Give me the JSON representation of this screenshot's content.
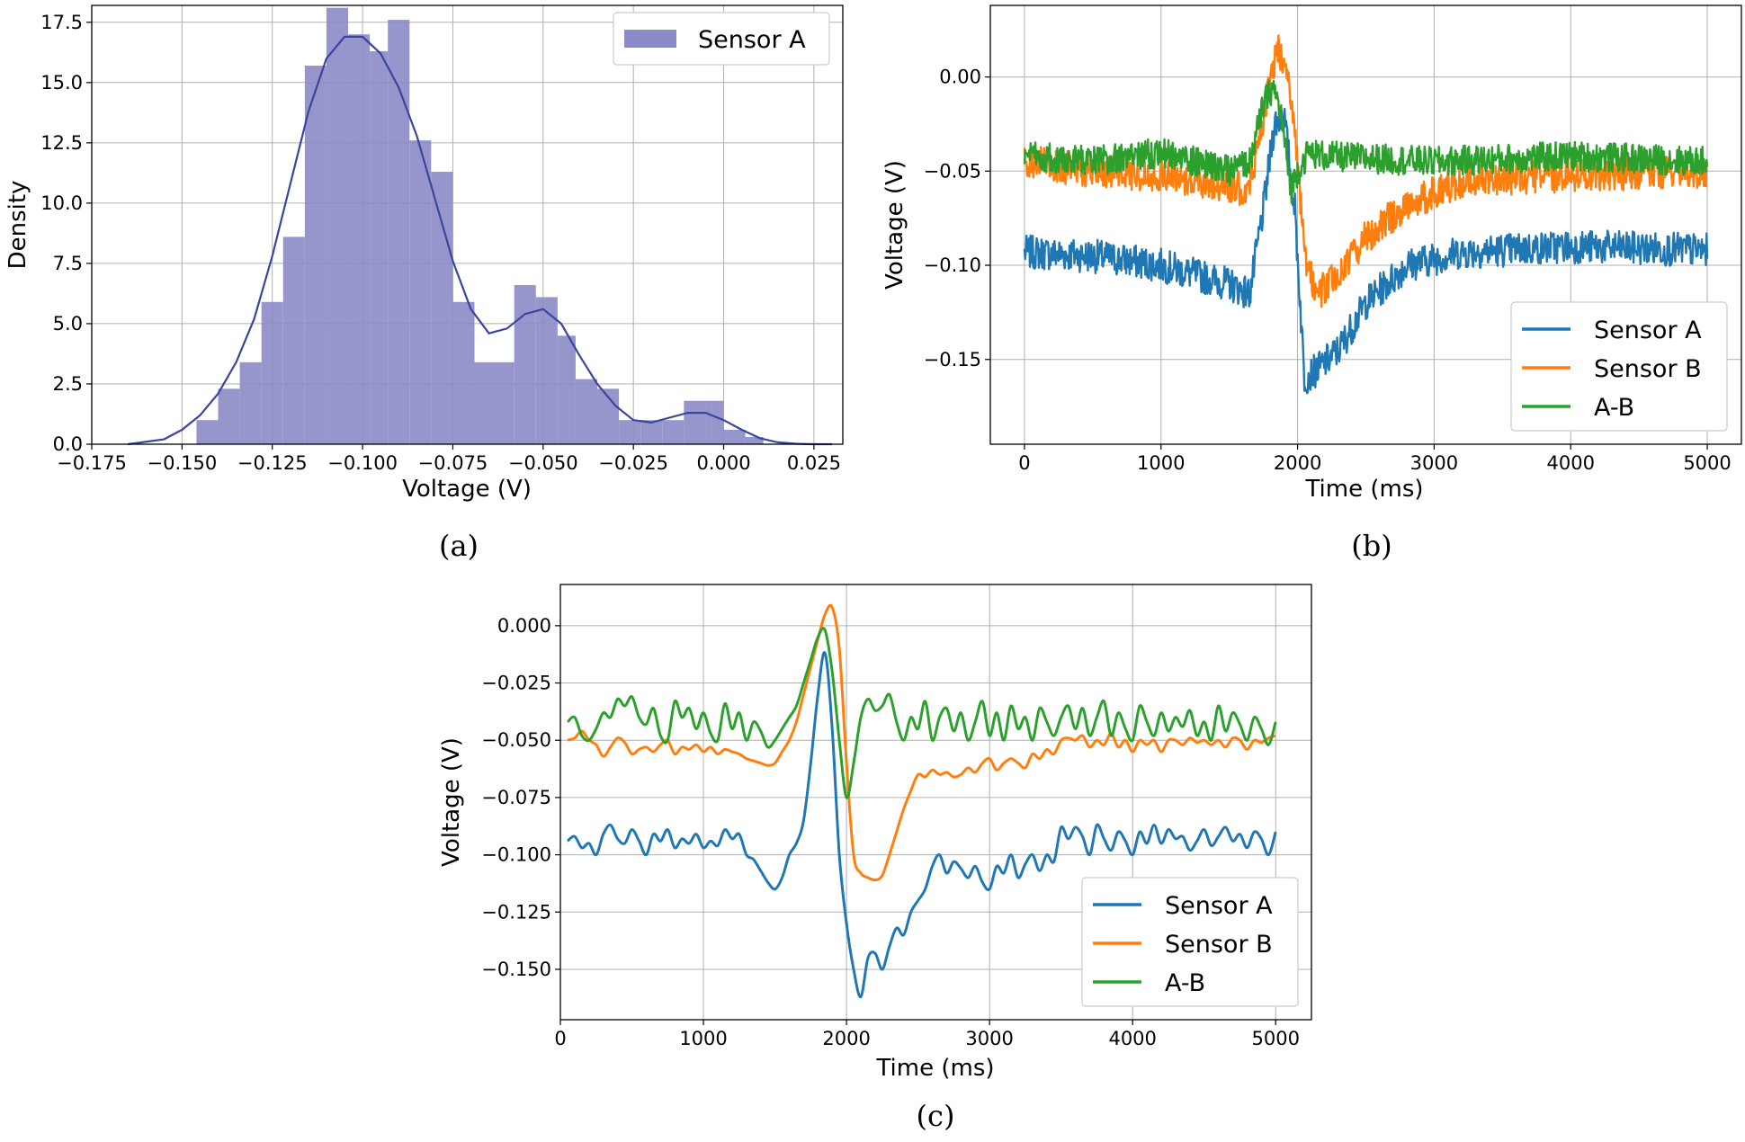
{
  "captions": {
    "a": "(a)",
    "b": "(b)",
    "c": "(c)"
  },
  "colors": {
    "hist": "#8b8bc8",
    "kde": "#3a45a0",
    "sensor_a": "#1f77b4",
    "sensor_b": "#ff7f0e",
    "a_b": "#2ca02c"
  },
  "chart_data": [
    {
      "id": "a",
      "type": "bar",
      "xlabel": "Voltage (V)",
      "ylabel": "Density",
      "xlim": [
        -0.175,
        0.033
      ],
      "ylim": [
        0,
        18.2
      ],
      "xticks": [
        "−0.175",
        "−0.150",
        "−0.125",
        "−0.100",
        "−0.075",
        "−0.050",
        "−0.025",
        "0.000",
        "0.025"
      ],
      "yticks": [
        "0.0",
        "2.5",
        "5.0",
        "7.5",
        "10.0",
        "12.5",
        "15.0",
        "17.5"
      ],
      "grid": true,
      "legend": [
        "Sensor A"
      ],
      "legend_position": "top-right",
      "bins": [
        {
          "x0": -0.146,
          "x1": -0.14,
          "density": 1.0
        },
        {
          "x0": -0.14,
          "x1": -0.134,
          "density": 2.3
        },
        {
          "x0": -0.134,
          "x1": -0.128,
          "density": 3.4
        },
        {
          "x0": -0.128,
          "x1": -0.122,
          "density": 5.9
        },
        {
          "x0": -0.122,
          "x1": -0.116,
          "density": 8.6
        },
        {
          "x0": -0.116,
          "x1": -0.11,
          "density": 15.7
        },
        {
          "x0": -0.11,
          "x1": -0.104,
          "density": 18.1
        },
        {
          "x0": -0.104,
          "x1": -0.098,
          "density": 17.0
        },
        {
          "x0": -0.098,
          "x1": -0.093,
          "density": 16.3
        },
        {
          "x0": -0.093,
          "x1": -0.087,
          "density": 17.6
        },
        {
          "x0": -0.087,
          "x1": -0.081,
          "density": 12.6
        },
        {
          "x0": -0.081,
          "x1": -0.075,
          "density": 11.3
        },
        {
          "x0": -0.075,
          "x1": -0.069,
          "density": 5.9
        },
        {
          "x0": -0.069,
          "x1": -0.058,
          "density": 3.4
        },
        {
          "x0": -0.058,
          "x1": -0.052,
          "density": 6.6
        },
        {
          "x0": -0.052,
          "x1": -0.046,
          "density": 6.1
        },
        {
          "x0": -0.046,
          "x1": -0.041,
          "density": 4.5
        },
        {
          "x0": -0.041,
          "x1": -0.035,
          "density": 2.7
        },
        {
          "x0": -0.035,
          "x1": -0.029,
          "density": 2.3
        },
        {
          "x0": -0.029,
          "x1": -0.023,
          "density": 1.0
        },
        {
          "x0": -0.023,
          "x1": -0.017,
          "density": 1.0
        },
        {
          "x0": -0.017,
          "x1": -0.011,
          "density": 1.0
        },
        {
          "x0": -0.011,
          "x1": -0.005,
          "density": 1.8
        },
        {
          "x0": -0.005,
          "x1": 0.0,
          "density": 1.8
        },
        {
          "x0": 0.0,
          "x1": 0.006,
          "density": 0.6
        },
        {
          "x0": 0.006,
          "x1": 0.011,
          "density": 0.3
        }
      ],
      "kde": {
        "x": [
          -0.165,
          -0.155,
          -0.15,
          -0.145,
          -0.14,
          -0.135,
          -0.13,
          -0.125,
          -0.12,
          -0.115,
          -0.11,
          -0.105,
          -0.1,
          -0.095,
          -0.09,
          -0.085,
          -0.08,
          -0.075,
          -0.07,
          -0.065,
          -0.06,
          -0.055,
          -0.05,
          -0.045,
          -0.04,
          -0.035,
          -0.03,
          -0.025,
          -0.02,
          -0.015,
          -0.01,
          -0.005,
          0.0,
          0.005,
          0.01,
          0.015,
          0.02,
          0.025,
          0.03
        ],
        "y": [
          0.0,
          0.2,
          0.6,
          1.2,
          2.1,
          3.4,
          5.2,
          7.8,
          10.8,
          13.8,
          16.0,
          16.9,
          16.9,
          16.2,
          14.8,
          12.8,
          10.2,
          7.6,
          5.6,
          4.6,
          4.8,
          5.4,
          5.6,
          5.0,
          3.7,
          2.5,
          1.6,
          1.0,
          0.9,
          1.1,
          1.3,
          1.3,
          1.0,
          0.6,
          0.25,
          0.08,
          0.02,
          0.0,
          0.0
        ]
      }
    },
    {
      "id": "b",
      "type": "line",
      "xlabel": "Time (ms)",
      "ylabel": "Voltage (V)",
      "xlim": [
        -250,
        5250
      ],
      "ylim": [
        -0.195,
        0.038
      ],
      "xticks": [
        0,
        1000,
        2000,
        3000,
        4000,
        5000
      ],
      "yticks": [
        "0.00",
        "−0.05",
        "−0.10",
        "−0.15"
      ],
      "ytick_values": [
        0.0,
        -0.05,
        -0.1,
        -0.15
      ],
      "grid": true,
      "legend_position": "bottom-right",
      "series": [
        {
          "name": "Sensor A",
          "color_key": "sensor_a",
          "noise": 0.009,
          "knots_x": [
            0,
            500,
            1000,
            1500,
            1650,
            1750,
            1830,
            1900,
            1980,
            2050,
            2150,
            2300,
            2500,
            2800,
            3200,
            4000,
            5000
          ],
          "knots_y": [
            -0.093,
            -0.095,
            -0.1,
            -0.11,
            -0.115,
            -0.07,
            -0.025,
            -0.02,
            -0.07,
            -0.16,
            -0.155,
            -0.145,
            -0.12,
            -0.1,
            -0.093,
            -0.09,
            -0.092
          ]
        },
        {
          "name": "Sensor B",
          "color_key": "sensor_b",
          "noise": 0.009,
          "knots_x": [
            0,
            500,
            1000,
            1500,
            1650,
            1750,
            1850,
            1920,
            1990,
            2060,
            2150,
            2300,
            2500,
            2800,
            3200,
            4000,
            5000
          ],
          "knots_y": [
            -0.045,
            -0.05,
            -0.052,
            -0.058,
            -0.06,
            -0.02,
            0.015,
            0.008,
            -0.04,
            -0.1,
            -0.115,
            -0.105,
            -0.085,
            -0.068,
            -0.055,
            -0.052,
            -0.05
          ]
        },
        {
          "name": "A-B",
          "color_key": "a_b",
          "noise": 0.008,
          "knots_x": [
            0,
            500,
            1000,
            1500,
            1650,
            1750,
            1820,
            1880,
            1950,
            2000,
            2080,
            2200,
            3000,
            4000,
            5000
          ],
          "knots_y": [
            -0.042,
            -0.045,
            -0.04,
            -0.05,
            -0.045,
            -0.015,
            -0.005,
            -0.02,
            -0.06,
            -0.05,
            -0.04,
            -0.042,
            -0.045,
            -0.042,
            -0.045
          ]
        }
      ]
    },
    {
      "id": "c",
      "type": "line",
      "xlabel": "Time (ms)",
      "ylabel": "Voltage (V)",
      "xlim": [
        0,
        5250
      ],
      "ylim": [
        -0.172,
        0.018
      ],
      "xticks": [
        0,
        1000,
        2000,
        3000,
        4000,
        5000
      ],
      "yticks": [
        "0.000",
        "−0.025",
        "−0.050",
        "−0.075",
        "−0.100",
        "−0.125",
        "−0.150"
      ],
      "ytick_values": [
        0.0,
        -0.025,
        -0.05,
        -0.075,
        -0.1,
        -0.125,
        -0.15
      ],
      "grid": true,
      "legend_position": "bottom-right",
      "series": [
        {
          "name": "Sensor A",
          "color_key": "sensor_a",
          "x": [
            50,
            100,
            150,
            200,
            250,
            300,
            350,
            400,
            450,
            500,
            550,
            600,
            650,
            700,
            750,
            800,
            850,
            900,
            950,
            1000,
            1050,
            1100,
            1150,
            1200,
            1250,
            1300,
            1350,
            1400,
            1450,
            1500,
            1550,
            1600,
            1650,
            1700,
            1750,
            1800,
            1850,
            1900,
            1950,
            2000,
            2050,
            2100,
            2150,
            2200,
            2250,
            2300,
            2350,
            2400,
            2450,
            2500,
            2550,
            2600,
            2650,
            2700,
            2750,
            2800,
            2850,
            2900,
            2950,
            3000,
            3050,
            3100,
            3150,
            3200,
            3250,
            3300,
            3350,
            3400,
            3450,
            3500,
            3550,
            3600,
            3650,
            3700,
            3750,
            3800,
            3850,
            3900,
            3950,
            4000,
            4050,
            4100,
            4150,
            4200,
            4250,
            4300,
            4350,
            4400,
            4450,
            4500,
            4550,
            4600,
            4650,
            4700,
            4750,
            4800,
            4850,
            4900,
            4950,
            5000
          ],
          "y": [
            -0.094,
            -0.092,
            -0.097,
            -0.095,
            -0.1,
            -0.091,
            -0.087,
            -0.093,
            -0.095,
            -0.089,
            -0.094,
            -0.1,
            -0.091,
            -0.094,
            -0.089,
            -0.097,
            -0.093,
            -0.095,
            -0.091,
            -0.097,
            -0.094,
            -0.096,
            -0.089,
            -0.093,
            -0.091,
            -0.1,
            -0.102,
            -0.107,
            -0.112,
            -0.115,
            -0.11,
            -0.1,
            -0.095,
            -0.085,
            -0.06,
            -0.03,
            -0.012,
            -0.045,
            -0.1,
            -0.13,
            -0.15,
            -0.162,
            -0.145,
            -0.143,
            -0.15,
            -0.14,
            -0.132,
            -0.135,
            -0.125,
            -0.12,
            -0.115,
            -0.105,
            -0.1,
            -0.108,
            -0.103,
            -0.106,
            -0.11,
            -0.105,
            -0.112,
            -0.115,
            -0.105,
            -0.108,
            -0.1,
            -0.11,
            -0.104,
            -0.1,
            -0.107,
            -0.1,
            -0.103,
            -0.088,
            -0.093,
            -0.088,
            -0.092,
            -0.1,
            -0.087,
            -0.093,
            -0.098,
            -0.09,
            -0.094,
            -0.1,
            -0.09,
            -0.095,
            -0.087,
            -0.095,
            -0.089,
            -0.093,
            -0.092,
            -0.098,
            -0.094,
            -0.089,
            -0.096,
            -0.092,
            -0.088,
            -0.094,
            -0.091,
            -0.097,
            -0.09,
            -0.093,
            -0.1,
            -0.09
          ]
        },
        {
          "name": "Sensor B",
          "color_key": "sensor_b",
          "x": [
            50,
            100,
            150,
            200,
            250,
            300,
            350,
            400,
            450,
            500,
            550,
            600,
            650,
            700,
            750,
            800,
            850,
            900,
            950,
            1000,
            1050,
            1100,
            1150,
            1200,
            1250,
            1300,
            1350,
            1400,
            1450,
            1500,
            1550,
            1600,
            1650,
            1700,
            1750,
            1800,
            1850,
            1900,
            1950,
            2000,
            2050,
            2100,
            2150,
            2200,
            2250,
            2300,
            2350,
            2400,
            2450,
            2500,
            2550,
            2600,
            2650,
            2700,
            2750,
            2800,
            2850,
            2900,
            2950,
            3000,
            3050,
            3100,
            3150,
            3200,
            3250,
            3300,
            3350,
            3400,
            3450,
            3500,
            3550,
            3600,
            3650,
            3700,
            3750,
            3800,
            3850,
            3900,
            3950,
            4000,
            4050,
            4100,
            4150,
            4200,
            4250,
            4300,
            4350,
            4400,
            4450,
            4500,
            4550,
            4600,
            4650,
            4700,
            4750,
            4800,
            4850,
            4900,
            4950,
            5000
          ],
          "y": [
            -0.05,
            -0.049,
            -0.046,
            -0.05,
            -0.052,
            -0.057,
            -0.053,
            -0.049,
            -0.051,
            -0.056,
            -0.054,
            -0.053,
            -0.055,
            -0.052,
            -0.05,
            -0.056,
            -0.053,
            -0.054,
            -0.052,
            -0.055,
            -0.053,
            -0.056,
            -0.054,
            -0.055,
            -0.056,
            -0.058,
            -0.059,
            -0.06,
            -0.061,
            -0.06,
            -0.055,
            -0.05,
            -0.042,
            -0.03,
            -0.018,
            -0.006,
            0.005,
            0.008,
            -0.01,
            -0.06,
            -0.1,
            -0.108,
            -0.11,
            -0.111,
            -0.109,
            -0.1,
            -0.09,
            -0.08,
            -0.072,
            -0.065,
            -0.066,
            -0.063,
            -0.065,
            -0.064,
            -0.066,
            -0.065,
            -0.062,
            -0.064,
            -0.06,
            -0.058,
            -0.063,
            -0.06,
            -0.058,
            -0.06,
            -0.062,
            -0.056,
            -0.058,
            -0.054,
            -0.056,
            -0.05,
            -0.049,
            -0.05,
            -0.048,
            -0.053,
            -0.05,
            -0.052,
            -0.047,
            -0.053,
            -0.05,
            -0.055,
            -0.05,
            -0.052,
            -0.05,
            -0.055,
            -0.05,
            -0.05,
            -0.052,
            -0.049,
            -0.051,
            -0.05,
            -0.052,
            -0.05,
            -0.053,
            -0.049,
            -0.05,
            -0.054,
            -0.05,
            -0.051,
            -0.049,
            -0.048
          ]
        },
        {
          "name": "A-B",
          "color_key": "a_b",
          "x": [
            50,
            100,
            150,
            200,
            250,
            300,
            350,
            400,
            450,
            500,
            550,
            600,
            650,
            700,
            750,
            800,
            850,
            900,
            950,
            1000,
            1050,
            1100,
            1150,
            1200,
            1250,
            1300,
            1350,
            1400,
            1450,
            1500,
            1550,
            1600,
            1650,
            1700,
            1750,
            1800,
            1850,
            1900,
            1950,
            2000,
            2050,
            2100,
            2150,
            2200,
            2250,
            2300,
            2350,
            2400,
            2450,
            2500,
            2550,
            2600,
            2650,
            2700,
            2750,
            2800,
            2850,
            2900,
            2950,
            3000,
            3050,
            3100,
            3150,
            3200,
            3250,
            3300,
            3350,
            3400,
            3450,
            3500,
            3550,
            3600,
            3650,
            3700,
            3750,
            3800,
            3850,
            3900,
            3950,
            4000,
            4050,
            4100,
            4150,
            4200,
            4250,
            4300,
            4350,
            4400,
            4450,
            4500,
            4550,
            4600,
            4650,
            4700,
            4750,
            4800,
            4850,
            4900,
            4950,
            5000
          ],
          "y": [
            -0.042,
            -0.04,
            -0.048,
            -0.05,
            -0.045,
            -0.038,
            -0.04,
            -0.032,
            -0.035,
            -0.031,
            -0.04,
            -0.043,
            -0.036,
            -0.048,
            -0.05,
            -0.033,
            -0.04,
            -0.036,
            -0.045,
            -0.038,
            -0.047,
            -0.05,
            -0.034,
            -0.045,
            -0.038,
            -0.05,
            -0.042,
            -0.046,
            -0.053,
            -0.05,
            -0.045,
            -0.04,
            -0.035,
            -0.025,
            -0.015,
            -0.005,
            -0.002,
            -0.02,
            -0.05,
            -0.075,
            -0.06,
            -0.04,
            -0.032,
            -0.037,
            -0.035,
            -0.03,
            -0.042,
            -0.05,
            -0.04,
            -0.045,
            -0.033,
            -0.05,
            -0.04,
            -0.036,
            -0.046,
            -0.038,
            -0.05,
            -0.042,
            -0.033,
            -0.048,
            -0.038,
            -0.05,
            -0.035,
            -0.045,
            -0.04,
            -0.05,
            -0.036,
            -0.042,
            -0.048,
            -0.04,
            -0.035,
            -0.045,
            -0.036,
            -0.048,
            -0.04,
            -0.033,
            -0.048,
            -0.038,
            -0.045,
            -0.05,
            -0.035,
            -0.042,
            -0.048,
            -0.038,
            -0.046,
            -0.04,
            -0.044,
            -0.037,
            -0.048,
            -0.042,
            -0.05,
            -0.035,
            -0.046,
            -0.038,
            -0.043,
            -0.05,
            -0.04,
            -0.045,
            -0.052,
            -0.042
          ]
        }
      ]
    }
  ]
}
